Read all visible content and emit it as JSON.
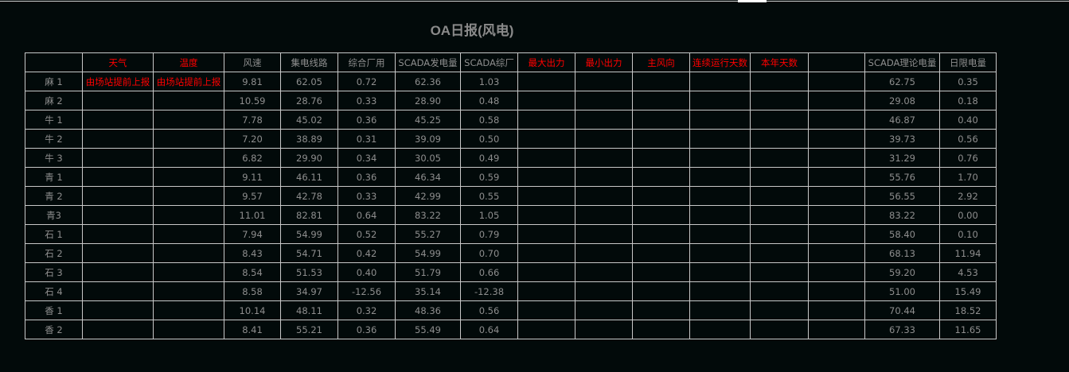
{
  "title": "OA日报(风电)",
  "colors": {
    "background": "#020a0a",
    "text": "#8e8e8e",
    "highlight": "#ff0000",
    "grid": "#c8c8c8"
  },
  "columns": [
    {
      "label": "",
      "red": false
    },
    {
      "label": "天气",
      "red": true
    },
    {
      "label": "温度",
      "red": true
    },
    {
      "label": "风速",
      "red": false
    },
    {
      "label": "集电线路",
      "red": false
    },
    {
      "label": "综合厂用",
      "red": false
    },
    {
      "label": "SCADA发电量",
      "red": false
    },
    {
      "label": "SCADA综厂",
      "red": false
    },
    {
      "label": "最大出力",
      "red": true
    },
    {
      "label": "最小出力",
      "red": true
    },
    {
      "label": "主风向",
      "red": true
    },
    {
      "label": "连续运行天数",
      "red": true
    },
    {
      "label": "本年天数",
      "red": true
    },
    {
      "label": "",
      "red": false
    },
    {
      "label": "SCADA理论电量",
      "red": false
    },
    {
      "label": "日限电量",
      "red": false
    }
  ],
  "rows": [
    [
      "麻 1",
      "由场站提前上报",
      "由场站提前上报",
      "9.81",
      "62.05",
      "0.72",
      "62.36",
      "1.03",
      "",
      "",
      "",
      "",
      "",
      "",
      "62.75",
      "0.35"
    ],
    [
      "麻 2",
      "",
      "",
      "10.59",
      "28.76",
      "0.33",
      "28.90",
      "0.48",
      "",
      "",
      "",
      "",
      "",
      "",
      "29.08",
      "0.18"
    ],
    [
      "牛 1",
      "",
      "",
      "7.78",
      "45.02",
      "0.36",
      "45.25",
      "0.58",
      "",
      "",
      "",
      "",
      "",
      "",
      "46.87",
      "0.40"
    ],
    [
      "牛 2",
      "",
      "",
      "7.20",
      "38.89",
      "0.31",
      "39.09",
      "0.50",
      "",
      "",
      "",
      "",
      "",
      "",
      "39.73",
      "0.56"
    ],
    [
      "牛 3",
      "",
      "",
      "6.82",
      "29.90",
      "0.34",
      "30.05",
      "0.49",
      "",
      "",
      "",
      "",
      "",
      "",
      "31.29",
      "0.76"
    ],
    [
      "青 1",
      "",
      "",
      "9.11",
      "46.11",
      "0.36",
      "46.34",
      "0.59",
      "",
      "",
      "",
      "",
      "",
      "",
      "55.76",
      "1.70"
    ],
    [
      "青 2",
      "",
      "",
      "9.57",
      "42.78",
      "0.33",
      "42.99",
      "0.55",
      "",
      "",
      "",
      "",
      "",
      "",
      "56.55",
      "2.92"
    ],
    [
      "青3",
      "",
      "",
      "11.01",
      "82.81",
      "0.64",
      "83.22",
      "1.05",
      "",
      "",
      "",
      "",
      "",
      "",
      "83.22",
      "0.00"
    ],
    [
      "石 1",
      "",
      "",
      "7.94",
      "54.99",
      "0.52",
      "55.27",
      "0.79",
      "",
      "",
      "",
      "",
      "",
      "",
      "58.40",
      "0.10"
    ],
    [
      "石 2",
      "",
      "",
      "8.43",
      "54.71",
      "0.42",
      "54.99",
      "0.70",
      "",
      "",
      "",
      "",
      "",
      "",
      "68.13",
      "11.94"
    ],
    [
      "石 3",
      "",
      "",
      "8.54",
      "51.53",
      "0.40",
      "51.79",
      "0.66",
      "",
      "",
      "",
      "",
      "",
      "",
      "59.20",
      "4.53"
    ],
    [
      "石 4",
      "",
      "",
      "8.58",
      "34.97",
      "-12.56",
      "35.14",
      "-12.38",
      "",
      "",
      "",
      "",
      "",
      "",
      "51.00",
      "15.49"
    ],
    [
      "香 1",
      "",
      "",
      "10.14",
      "48.11",
      "0.32",
      "48.36",
      "0.56",
      "",
      "",
      "",
      "",
      "",
      "",
      "70.44",
      "18.52"
    ],
    [
      "香 2",
      "",
      "",
      "8.41",
      "55.21",
      "0.36",
      "55.49",
      "0.64",
      "",
      "",
      "",
      "",
      "",
      "",
      "67.33",
      "11.65"
    ]
  ]
}
